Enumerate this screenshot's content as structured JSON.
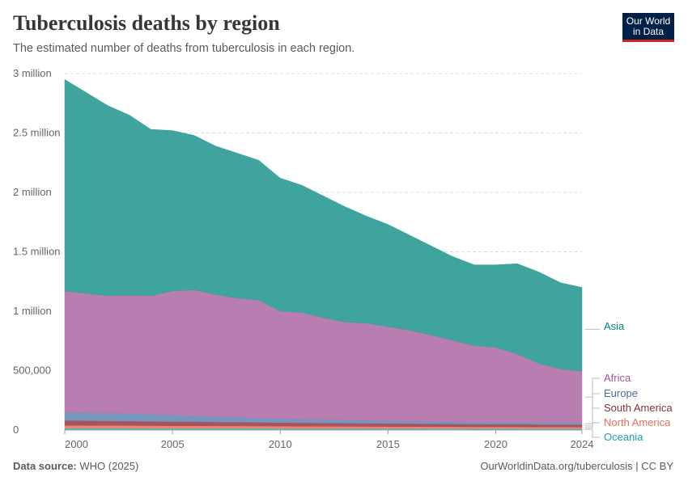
{
  "header": {
    "title": "Tuberculosis deaths by region",
    "subtitle": "The estimated number of deaths from tuberculosis in each region.",
    "logo": "Our World in Data"
  },
  "footer": {
    "source_label": "Data source:",
    "source": "WHO (2025)",
    "url": "OurWorldinData.org/tuberculosis | CC BY"
  },
  "chart_data": {
    "type": "area",
    "stacked": true,
    "title": "Tuberculosis deaths by region",
    "x": [
      2000,
      2001,
      2002,
      2003,
      2004,
      2005,
      2006,
      2007,
      2008,
      2009,
      2010,
      2011,
      2012,
      2013,
      2014,
      2015,
      2016,
      2017,
      2018,
      2019,
      2020,
      2021,
      2022,
      2023,
      2024
    ],
    "xticks": [
      "2000",
      "2005",
      "2010",
      "2015",
      "2020",
      "2024"
    ],
    "xtick_values": [
      2000,
      2005,
      2010,
      2015,
      2020,
      2024
    ],
    "yticks": [
      "0",
      "500,000",
      "1 million",
      "1.5 million",
      "2 million",
      "2.5 million",
      "3 million"
    ],
    "ytick_values": [
      0,
      500000,
      1000000,
      1500000,
      2000000,
      2500000,
      3000000
    ],
    "ylim": [
      0,
      3000000
    ],
    "grid": "horizontal dashed",
    "legend": "right, inline labels",
    "series": [
      {
        "name": "Oceania",
        "fill": "#4eb3c0",
        "label_color": "#18a2b0",
        "values": [
          15000,
          15000,
          15000,
          15000,
          14000,
          14000,
          14000,
          14000,
          14000,
          14000,
          13000,
          13000,
          13000,
          13000,
          13000,
          13000,
          13000,
          12000,
          12000,
          12000,
          12000,
          12000,
          12000,
          12000,
          12000
        ]
      },
      {
        "name": "North America",
        "fill": "#e8806f",
        "label_color": "#e56e5a",
        "values": [
          25000,
          24000,
          24000,
          23000,
          23000,
          22000,
          22000,
          21000,
          21000,
          20000,
          20000,
          19000,
          19000,
          18000,
          18000,
          17000,
          17000,
          16000,
          16000,
          15000,
          15000,
          15000,
          14000,
          14000,
          13000
        ]
      },
      {
        "name": "South America",
        "fill": "#a44b53",
        "label_color": "#883039",
        "values": [
          40000,
          39000,
          38000,
          37000,
          36000,
          35000,
          34000,
          33000,
          32000,
          31000,
          30000,
          29000,
          28000,
          27000,
          26000,
          25000,
          24000,
          24000,
          23000,
          23000,
          22000,
          22000,
          21000,
          21000,
          20000
        ]
      },
      {
        "name": "Europe",
        "fill": "#7090bb",
        "label_color": "#4c6a9c",
        "values": [
          70000,
          68000,
          65000,
          63000,
          61000,
          54000,
          50000,
          44000,
          41000,
          35000,
          32000,
          31000,
          28000,
          26000,
          23000,
          20000,
          19000,
          19000,
          18000,
          17000,
          16000,
          15000,
          16000,
          15000,
          15000
        ]
      },
      {
        "name": "Africa",
        "fill": "#b577ad",
        "label_color": "#a2559c",
        "values": [
          1020000,
          1004000,
          988000,
          997000,
          996000,
          1045000,
          1060000,
          1028000,
          1002000,
          995000,
          905000,
          898000,
          857000,
          826000,
          820000,
          795000,
          767000,
          729000,
          686000,
          643000,
          630000,
          576000,
          497000,
          453000,
          435000
        ]
      },
      {
        "name": "Asia",
        "fill": "#359f98",
        "label_color": "#00847e",
        "values": [
          1780000,
          1690000,
          1600000,
          1515000,
          1400000,
          1350000,
          1300000,
          1250000,
          1220000,
          1175000,
          1120000,
          1070000,
          1025000,
          970000,
          900000,
          860000,
          800000,
          750000,
          705000,
          680000,
          695000,
          760000,
          770000,
          725000,
          705000
        ]
      }
    ]
  }
}
